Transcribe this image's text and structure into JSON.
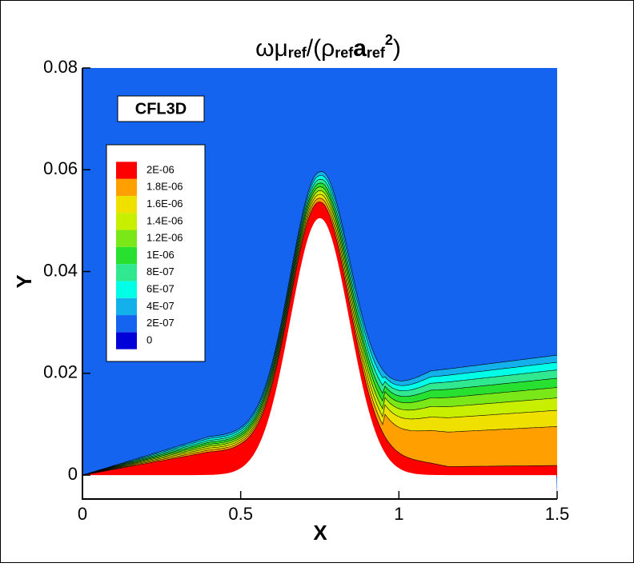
{
  "chart_data": {
    "type": "contour",
    "title_parts": [
      "ωμ",
      "ref",
      "/(ρ",
      "ref",
      "a",
      "ref",
      "2",
      ")"
    ],
    "annotation": "CFL3D",
    "x_label": "X",
    "y_label": "Y",
    "xlim": [
      0,
      1.5
    ],
    "ylim": [
      -0.0047,
      0.08
    ],
    "xticks": [
      0,
      0.5,
      1,
      1.5
    ],
    "yticks": [
      0,
      0.02,
      0.04,
      0.06,
      0.08
    ],
    "legend": {
      "position": "upper left",
      "levels": [
        {
          "value": 0,
          "label": "0",
          "color": "#0000d8"
        },
        {
          "value": 2e-07,
          "label": "2E-07",
          "color": "#1464f0"
        },
        {
          "value": 4e-07,
          "label": "4E-07",
          "color": "#14b0ec"
        },
        {
          "value": 6e-07,
          "label": "6E-07",
          "color": "#00ffe6"
        },
        {
          "value": 8e-07,
          "label": "8E-07",
          "color": "#30e890"
        },
        {
          "value": 1e-06,
          "label": "1E-06",
          "color": "#28e030"
        },
        {
          "value": 1.2e-06,
          "label": "1.2E-06",
          "color": "#7ae818"
        },
        {
          "value": 1.4e-06,
          "label": "1.4E-06",
          "color": "#c8ee00"
        },
        {
          "value": 1.6e-06,
          "label": "1.6E-06",
          "color": "#f0e000"
        },
        {
          "value": 1.8e-06,
          "label": "1.8E-06",
          "color": "#ffa000"
        },
        {
          "value": 2e-06,
          "label": "2E-06",
          "color": "#ff0000"
        }
      ]
    }
  }
}
